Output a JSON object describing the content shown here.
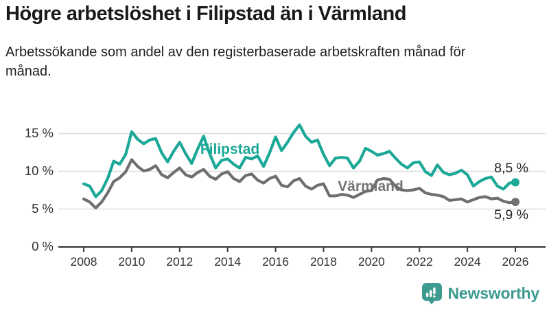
{
  "header": {
    "title": "Högre arbetslöshet i Filipstad än i Värmland",
    "subtitle": "Arbetssökande som andel av den registerbaserade arbetskraften månad för månad."
  },
  "chart_data": {
    "type": "line",
    "title": "Högre arbetslöshet i Filipstad än i Värmland",
    "xlabel": "",
    "ylabel": "",
    "xlim": [
      2008,
      2026
    ],
    "ylim": [
      0,
      16.5
    ],
    "grid": true,
    "legend": "inline-labels",
    "x_start": 2008,
    "x_step": 0.25,
    "x_tick_labels": [
      "2008",
      "2010",
      "2012",
      "2014",
      "2016",
      "2018",
      "2020",
      "2022",
      "2024",
      "2026"
    ],
    "x_tick_years": [
      2008,
      2010,
      2012,
      2014,
      2016,
      2018,
      2020,
      2022,
      2024,
      2026
    ],
    "y_tick_values": [
      0,
      5,
      10,
      15
    ],
    "y_tick_labels": [
      "0 %",
      "5 %",
      "10 %",
      "15 %"
    ],
    "series": [
      {
        "name": "Filipstad",
        "color": "#1CA897",
        "end_label": "8,5 %",
        "end_value": 8.5,
        "values": [
          8.3,
          8.0,
          6.6,
          7.4,
          9.0,
          11.3,
          10.9,
          12.2,
          15.2,
          14.2,
          13.6,
          14.1,
          14.3,
          12.4,
          11.2,
          12.6,
          13.8,
          12.3,
          11.0,
          12.9,
          14.6,
          12.3,
          10.4,
          11.4,
          11.6,
          10.9,
          10.4,
          11.8,
          11.6,
          12.0,
          10.6,
          12.4,
          14.5,
          12.7,
          13.8,
          15.1,
          16.1,
          14.6,
          13.8,
          14.1,
          12.2,
          10.7,
          11.7,
          11.8,
          11.7,
          10.4,
          11.3,
          13.0,
          12.6,
          12.1,
          12.3,
          12.6,
          11.7,
          10.9,
          10.4,
          11.1,
          11.2,
          9.9,
          9.4,
          10.8,
          9.8,
          9.5,
          9.7,
          10.1,
          9.5,
          8.0,
          8.6,
          9.0,
          9.2,
          8.0,
          7.6,
          8.4,
          8.5
        ]
      },
      {
        "name": "Värmland",
        "color": "#6F6F6F",
        "end_label": "5,9 %",
        "end_value": 5.9,
        "values": [
          6.3,
          5.9,
          5.1,
          5.9,
          7.1,
          8.6,
          9.1,
          9.9,
          11.5,
          10.6,
          10.0,
          10.2,
          10.7,
          9.5,
          9.1,
          9.8,
          10.4,
          9.5,
          9.2,
          9.8,
          10.2,
          9.3,
          8.9,
          9.6,
          9.9,
          9.0,
          8.6,
          9.4,
          9.6,
          8.8,
          8.4,
          9.0,
          9.3,
          8.1,
          7.9,
          8.7,
          9.0,
          8.0,
          7.6,
          8.1,
          8.3,
          6.7,
          6.7,
          6.9,
          6.8,
          6.5,
          6.9,
          7.3,
          7.4,
          8.8,
          9.0,
          8.9,
          8.0,
          7.5,
          7.4,
          7.5,
          7.7,
          7.1,
          6.9,
          6.8,
          6.6,
          6.1,
          6.2,
          6.3,
          5.9,
          6.2,
          6.5,
          6.6,
          6.3,
          6.4,
          6.0,
          5.8,
          5.9
        ]
      }
    ]
  },
  "colors": {
    "grid": "#DDDDDD",
    "axis": "#3C3C3C",
    "tick_text": "#333333",
    "value_label_text": "#222222",
    "series_label_varmland": "#757575"
  },
  "footer": {
    "brand": "Newsworthy",
    "brand_color": "#3D9B90",
    "logo_icon": "newsworthy-bubble-barchart-icon"
  }
}
